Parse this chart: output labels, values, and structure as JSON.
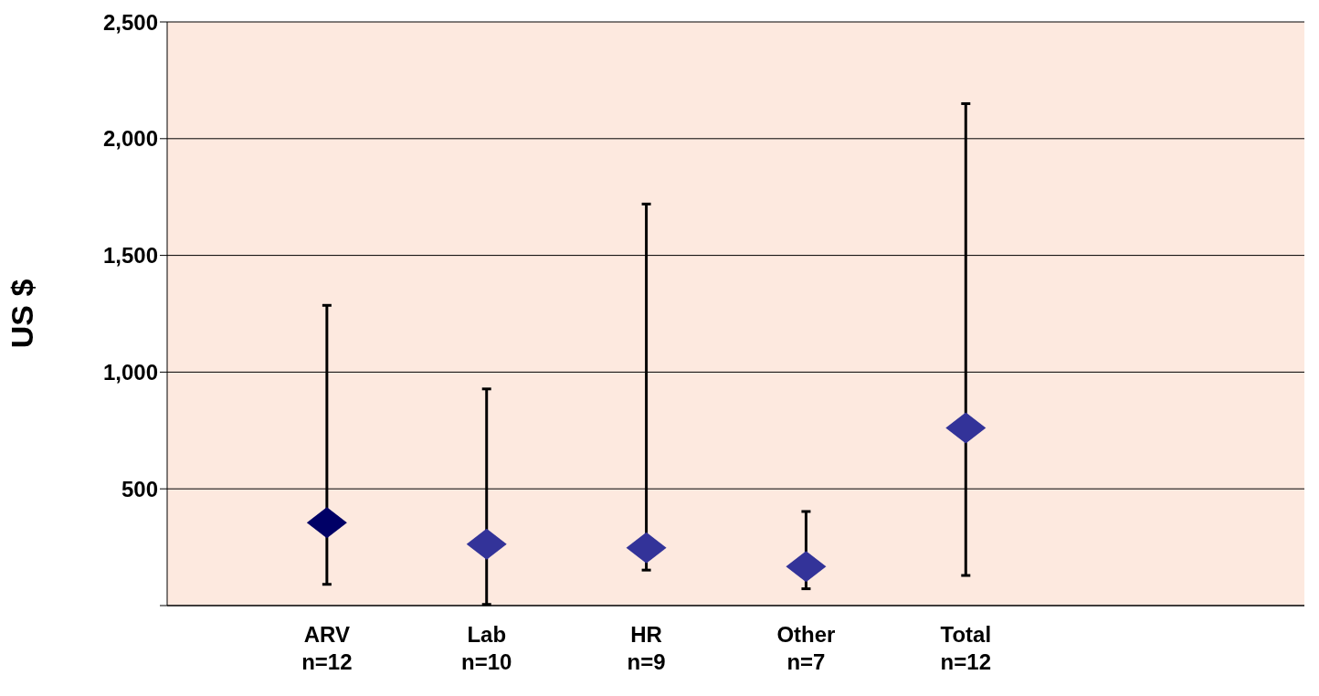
{
  "chart_data": {
    "type": "scatter",
    "ylabel": "US $",
    "categories": [
      "ARV\nn=12",
      "Lab\nn=10",
      "HR\nn=9",
      "Other\nn=7",
      "Total\nn=12"
    ],
    "values": [
      355,
      263,
      247,
      167,
      761
    ],
    "colors": [
      "#000066",
      "#333399",
      "#333399",
      "#333399",
      "#333399"
    ],
    "errors": [
      [
        91,
        1286
      ],
      [
        5,
        928
      ],
      [
        152,
        1720
      ],
      [
        72,
        403
      ],
      [
        129,
        2150
      ]
    ],
    "ylim": [
      0,
      2500
    ],
    "yticks": [
      {
        "value": 0,
        "label": null
      },
      500,
      {
        "value": 1000,
        "label": "1,000"
      },
      {
        "value": 1500,
        "label": "1,500"
      },
      {
        "value": 2000,
        "label": "2,000"
      },
      {
        "value": 2500,
        "label": "2,500"
      }
    ],
    "grid": "y",
    "marker": "diamond",
    "legend": false
  }
}
